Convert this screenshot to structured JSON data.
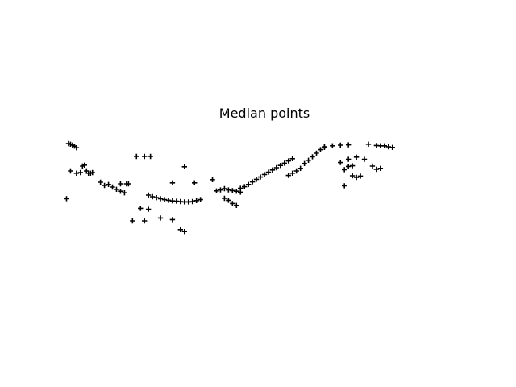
{
  "chart_data": {
    "type": "scatter",
    "title": "Median points",
    "marker": "+",
    "marker_color": "#000000",
    "axes_visible": false,
    "xlim": [
      0,
      100
    ],
    "ylim": [
      0,
      40
    ],
    "x": [
      1,
      1.5,
      2,
      2.5,
      3,
      1.5,
      3,
      4,
      4.5,
      5,
      5.5,
      6,
      6.5,
      7,
      0.5,
      9,
      10,
      11,
      12,
      13,
      14,
      15,
      14,
      15.5,
      16,
      18,
      20,
      21.5,
      17,
      19,
      21,
      21,
      22,
      23,
      24,
      25,
      26,
      27,
      28,
      29,
      30,
      31,
      32,
      33,
      34,
      20,
      24,
      27,
      29,
      30,
      27,
      32.5,
      30,
      37,
      38,
      39,
      40,
      41,
      42,
      43,
      44,
      40,
      41,
      42,
      43,
      44,
      45,
      46,
      47,
      48,
      49,
      50,
      51,
      52,
      53,
      54,
      55,
      56,
      57,
      56,
      57,
      58,
      59,
      60,
      61,
      62,
      63,
      64,
      65,
      65,
      67,
      69,
      71,
      70,
      71,
      72,
      72,
      73,
      74,
      69,
      71,
      73,
      75,
      70,
      76,
      78,
      79,
      80,
      81,
      82,
      77,
      78,
      79
    ],
    "y": [
      35.5,
      35.3,
      35,
      34.7,
      34.2,
      27,
      26.3,
      26.5,
      28.5,
      28.8,
      27,
      26.3,
      26.3,
      26.5,
      18.4,
      23.5,
      22.5,
      22.8,
      22,
      21.3,
      20.7,
      20.2,
      23,
      23,
      23,
      31.5,
      31.5,
      31.5,
      11.5,
      15.4,
      15.1,
      19.5,
      19,
      18.7,
      18.4,
      18.1,
      17.9,
      17.7,
      17.6,
      17.5,
      17.4,
      17.4,
      17.5,
      17.8,
      18.1,
      11.5,
      12.4,
      11.9,
      8.8,
      8.2,
      23.3,
      23.3,
      28.3,
      24.3,
      20.8,
      21.1,
      21.5,
      21.1,
      20.9,
      20.7,
      20.4,
      18.5,
      17.9,
      16.9,
      16.3,
      21.6,
      22.1,
      22.8,
      23.6,
      24.4,
      25.1,
      25.9,
      26.6,
      27.3,
      28,
      28.7,
      29.4,
      30.1,
      30.8,
      25.6,
      26.3,
      27,
      27.8,
      29.3,
      30.3,
      31.4,
      32.5,
      33.6,
      34.3,
      34.5,
      34.8,
      35,
      35.1,
      27.4,
      28.4,
      28.6,
      25.5,
      25,
      25.4,
      29.6,
      30.6,
      31.3,
      30.6,
      22.4,
      35.3,
      34.9,
      34.8,
      34.8,
      34.5,
      34.3,
      28.5,
      27.5,
      27.8
    ]
  }
}
